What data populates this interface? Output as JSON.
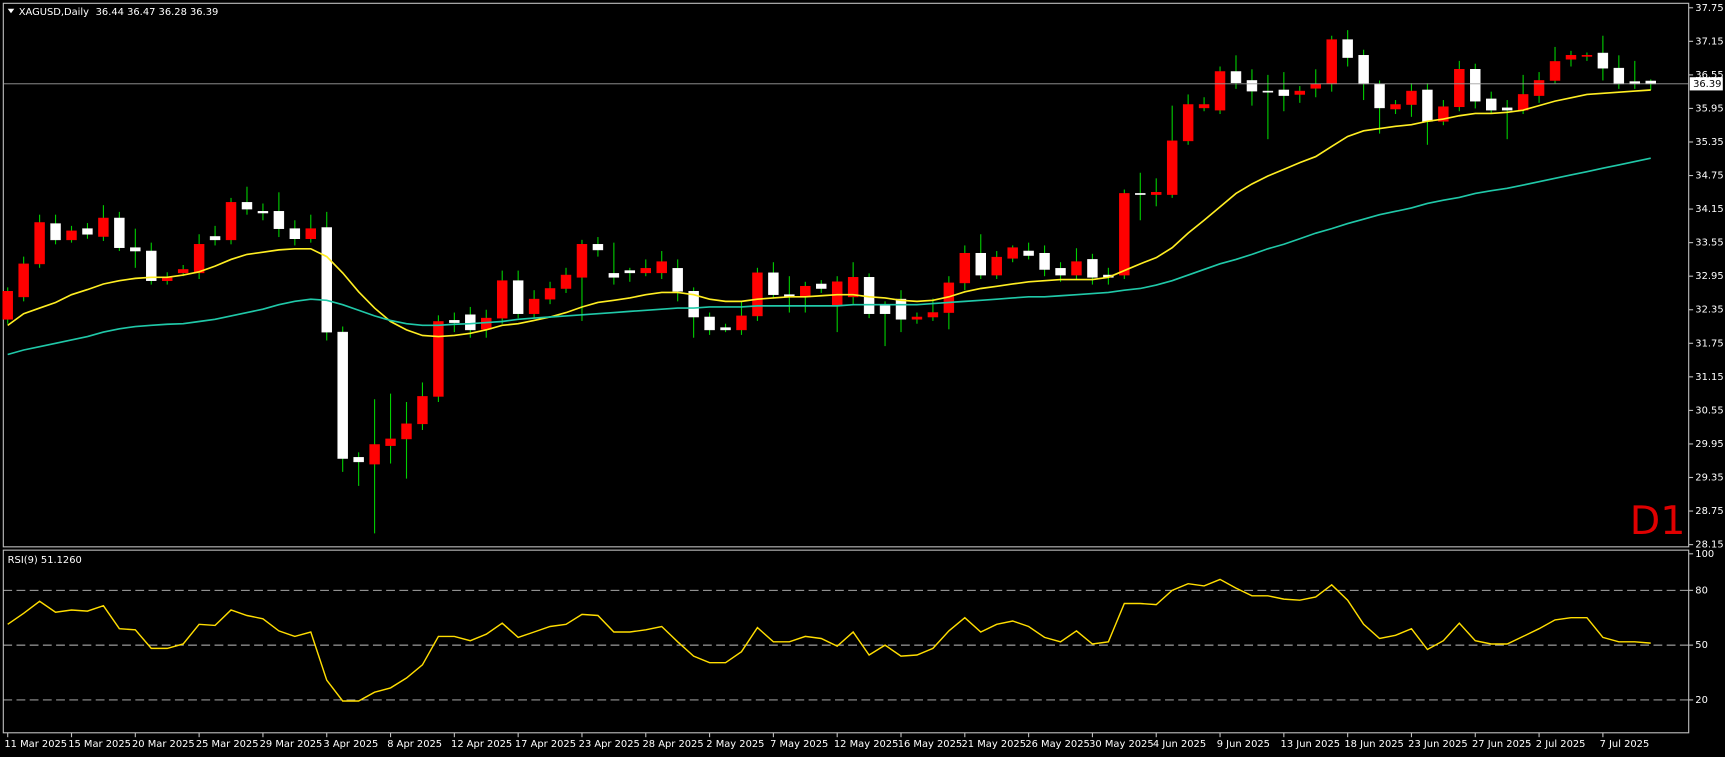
{
  "chart_data": [
    {
      "type": "candlestick",
      "title": "XAGUSD,Daily",
      "ohlc_header": "36.44 36.47 36.28 36.39",
      "timeframe_label": "D1",
      "categories": [
        "11 Mar 2025",
        null,
        null,
        null,
        "15 Mar 2025",
        null,
        null,
        null,
        "20 Mar 2025",
        null,
        null,
        null,
        "25 Mar 2025",
        null,
        null,
        null,
        "29 Mar 2025",
        null,
        null,
        null,
        "3 Apr 2025",
        null,
        null,
        null,
        "8 Apr 2025",
        null,
        null,
        null,
        "12 Apr 2025",
        null,
        null,
        null,
        "17 Apr 2025",
        null,
        null,
        null,
        "23 Apr 2025",
        null,
        null,
        null,
        "28 Apr 2025",
        null,
        null,
        null,
        "2 May 2025",
        null,
        null,
        null,
        "7 May 2025",
        null,
        null,
        null,
        "12 May 2025",
        null,
        null,
        null,
        "16 May 2025",
        null,
        null,
        null,
        "21 May 2025",
        null,
        null,
        null,
        "26 May 2025",
        null,
        null,
        null,
        "30 May 2025",
        null,
        null,
        null,
        "4 Jun 2025",
        null,
        null,
        null,
        "9 Jun 2025",
        null,
        null,
        null,
        "13 Jun 2025",
        null,
        null,
        null,
        "18 Jun 2025",
        null,
        null,
        null,
        "23 Jun 2025",
        null,
        null,
        null,
        "27 Jun 2025",
        null,
        null,
        null,
        "2 Jul 2025",
        null,
        null,
        null,
        "7 Jul 2025",
        null,
        null,
        null
      ],
      "ohlc": [
        [
          32.18,
          32.75,
          32.1,
          32.68
        ],
        [
          32.58,
          33.3,
          32.5,
          33.17
        ],
        [
          33.17,
          34.05,
          33.1,
          33.91
        ],
        [
          33.89,
          34.05,
          33.52,
          33.6
        ],
        [
          33.6,
          33.85,
          33.55,
          33.76
        ],
        [
          33.8,
          33.9,
          33.62,
          33.7
        ],
        [
          33.66,
          34.22,
          33.58,
          33.99
        ],
        [
          33.99,
          34.1,
          33.4,
          33.46
        ],
        [
          33.46,
          33.8,
          33.1,
          33.4
        ],
        [
          33.4,
          33.55,
          32.8,
          32.87
        ],
        [
          32.87,
          33.02,
          32.8,
          32.92
        ],
        [
          33.01,
          33.15,
          32.95,
          33.07
        ],
        [
          33.01,
          33.7,
          32.9,
          33.52
        ],
        [
          33.66,
          33.85,
          33.5,
          33.6
        ],
        [
          33.6,
          34.35,
          33.52,
          34.27
        ],
        [
          34.27,
          34.55,
          34.05,
          34.15
        ],
        [
          34.11,
          34.25,
          33.95,
          34.08
        ],
        [
          34.11,
          34.45,
          33.65,
          33.8
        ],
        [
          33.8,
          33.95,
          33.5,
          33.62
        ],
        [
          33.62,
          34.05,
          33.55,
          33.8
        ],
        [
          33.82,
          34.1,
          31.8,
          31.95
        ],
        [
          31.95,
          32.05,
          29.45,
          29.69
        ],
        [
          29.71,
          29.8,
          29.2,
          29.63
        ],
        [
          29.59,
          30.75,
          28.35,
          29.94
        ],
        [
          29.92,
          30.85,
          29.6,
          30.04
        ],
        [
          30.04,
          30.7,
          29.33,
          30.31
        ],
        [
          30.31,
          31.05,
          30.2,
          30.8
        ],
        [
          30.8,
          32.25,
          30.7,
          32.14
        ],
        [
          32.16,
          32.3,
          31.95,
          32.12
        ],
        [
          32.26,
          32.4,
          31.85,
          31.99
        ],
        [
          32.0,
          32.35,
          31.85,
          32.2
        ],
        [
          32.2,
          33.05,
          32.1,
          32.87
        ],
        [
          32.87,
          33.05,
          32.2,
          32.28
        ],
        [
          32.28,
          32.7,
          32.2,
          32.54
        ],
        [
          32.54,
          32.85,
          32.45,
          32.73
        ],
        [
          32.73,
          33.1,
          32.65,
          32.97
        ],
        [
          32.93,
          33.6,
          32.15,
          33.52
        ],
        [
          33.52,
          33.65,
          33.3,
          33.42
        ],
        [
          33.0,
          33.55,
          32.8,
          32.93
        ],
        [
          33.05,
          33.1,
          32.85,
          33.01
        ],
        [
          33.01,
          33.25,
          32.95,
          33.09
        ],
        [
          33.01,
          33.4,
          32.9,
          33.21
        ],
        [
          33.09,
          33.25,
          32.5,
          32.68
        ],
        [
          32.68,
          32.75,
          31.85,
          32.22
        ],
        [
          32.22,
          32.3,
          31.9,
          31.99
        ],
        [
          32.03,
          32.1,
          31.95,
          31.99
        ],
        [
          31.99,
          32.5,
          31.9,
          32.24
        ],
        [
          32.24,
          33.1,
          32.15,
          33.01
        ],
        [
          33.01,
          33.2,
          32.55,
          32.62
        ],
        [
          32.62,
          32.95,
          32.3,
          32.58
        ],
        [
          32.58,
          32.85,
          32.3,
          32.77
        ],
        [
          32.81,
          32.88,
          32.65,
          32.73
        ],
        [
          32.42,
          32.95,
          31.95,
          32.85
        ],
        [
          32.58,
          33.2,
          32.45,
          32.93
        ],
        [
          32.93,
          33.0,
          32.2,
          32.28
        ],
        [
          32.42,
          32.5,
          31.7,
          32.28
        ],
        [
          32.54,
          32.7,
          31.95,
          32.18
        ],
        [
          32.18,
          32.3,
          32.1,
          32.22
        ],
        [
          32.22,
          32.55,
          32.15,
          32.3
        ],
        [
          32.3,
          32.95,
          32.0,
          32.83
        ],
        [
          32.83,
          33.5,
          32.7,
          33.36
        ],
        [
          33.36,
          33.7,
          32.9,
          32.97
        ],
        [
          32.97,
          33.4,
          32.9,
          33.29
        ],
        [
          33.27,
          33.5,
          33.2,
          33.46
        ],
        [
          33.4,
          33.55,
          33.25,
          33.32
        ],
        [
          33.36,
          33.5,
          32.95,
          33.07
        ],
        [
          33.09,
          33.2,
          32.85,
          32.97
        ],
        [
          32.97,
          33.45,
          32.9,
          33.21
        ],
        [
          33.25,
          33.35,
          32.8,
          32.93
        ],
        [
          32.97,
          33.1,
          32.8,
          32.93
        ],
        [
          32.97,
          34.5,
          32.9,
          34.43
        ],
        [
          34.43,
          34.8,
          33.95,
          34.41
        ],
        [
          34.41,
          34.7,
          34.2,
          34.45
        ],
        [
          34.41,
          36.0,
          34.35,
          35.37
        ],
        [
          35.37,
          36.2,
          35.3,
          36.02
        ],
        [
          35.96,
          36.15,
          35.9,
          36.02
        ],
        [
          35.92,
          36.7,
          35.85,
          36.61
        ],
        [
          36.61,
          36.9,
          36.3,
          36.41
        ],
        [
          36.45,
          36.65,
          36.0,
          36.26
        ],
        [
          36.26,
          36.55,
          35.4,
          36.24
        ],
        [
          36.28,
          36.6,
          35.9,
          36.18
        ],
        [
          36.2,
          36.35,
          36.05,
          36.26
        ],
        [
          36.31,
          36.65,
          36.15,
          36.39
        ],
        [
          36.39,
          37.25,
          36.25,
          37.18
        ],
        [
          37.18,
          37.35,
          36.7,
          36.86
        ],
        [
          36.9,
          37.0,
          36.1,
          36.39
        ],
        [
          36.39,
          36.45,
          35.5,
          35.96
        ],
        [
          35.94,
          36.1,
          35.85,
          36.02
        ],
        [
          36.02,
          36.4,
          35.8,
          36.26
        ],
        [
          36.28,
          36.4,
          35.3,
          35.72
        ],
        [
          35.72,
          36.1,
          35.65,
          35.98
        ],
        [
          35.98,
          36.8,
          35.9,
          36.65
        ],
        [
          36.65,
          36.75,
          35.95,
          36.08
        ],
        [
          36.12,
          36.25,
          35.85,
          35.92
        ],
        [
          35.96,
          36.1,
          35.4,
          35.92
        ],
        [
          35.92,
          36.55,
          35.85,
          36.2
        ],
        [
          36.18,
          36.6,
          36.05,
          36.45
        ],
        [
          36.45,
          37.05,
          36.4,
          36.79
        ],
        [
          36.83,
          36.98,
          36.7,
          36.9
        ],
        [
          36.88,
          36.95,
          36.8,
          36.9
        ],
        [
          36.94,
          37.25,
          36.45,
          36.67
        ],
        [
          36.67,
          36.9,
          36.3,
          36.39
        ],
        [
          36.43,
          36.8,
          36.3,
          36.39
        ],
        [
          36.44,
          36.47,
          36.28,
          36.39
        ]
      ],
      "up_color": "#ff0000",
      "down_color": "#ffffff",
      "wick_color": "#00d000",
      "series": [
        {
          "color": "#ffee22",
          "values": [
            32.07,
            32.28,
            32.38,
            32.48,
            32.62,
            32.71,
            32.81,
            32.87,
            32.91,
            32.93,
            32.93,
            32.97,
            33.03,
            33.13,
            33.25,
            33.34,
            33.38,
            33.42,
            33.44,
            33.44,
            33.3,
            33.01,
            32.67,
            32.38,
            32.14,
            31.99,
            31.89,
            31.87,
            31.89,
            31.93,
            31.99,
            32.07,
            32.1,
            32.16,
            32.22,
            32.3,
            32.4,
            32.48,
            32.52,
            32.56,
            32.62,
            32.66,
            32.66,
            32.62,
            32.54,
            32.5,
            32.5,
            32.54,
            32.56,
            32.58,
            32.58,
            32.6,
            32.62,
            32.62,
            32.58,
            32.56,
            32.52,
            32.5,
            32.52,
            32.58,
            32.67,
            32.73,
            32.77,
            32.81,
            32.85,
            32.87,
            32.89,
            32.89,
            32.89,
            32.93,
            33.05,
            33.17,
            33.28,
            33.46,
            33.72,
            33.95,
            34.19,
            34.43,
            34.6,
            34.74,
            34.86,
            34.98,
            35.09,
            35.27,
            35.45,
            35.55,
            35.59,
            35.63,
            35.66,
            35.72,
            35.76,
            35.82,
            35.86,
            35.86,
            35.88,
            35.92,
            36.0,
            36.08,
            36.14,
            36.2,
            36.22,
            36.24,
            36.26,
            36.28
          ]
        },
        {
          "color": "#20c8a8",
          "values": [
            31.55,
            31.63,
            31.69,
            31.75,
            31.81,
            31.87,
            31.95,
            32.01,
            32.05,
            32.07,
            32.09,
            32.1,
            32.14,
            32.18,
            32.24,
            32.3,
            32.36,
            32.44,
            32.5,
            32.54,
            32.52,
            32.44,
            32.34,
            32.24,
            32.16,
            32.1,
            32.07,
            32.07,
            32.09,
            32.1,
            32.12,
            32.14,
            32.18,
            32.2,
            32.22,
            32.24,
            32.26,
            32.28,
            32.3,
            32.32,
            32.34,
            32.36,
            32.38,
            32.38,
            32.4,
            32.4,
            32.4,
            32.42,
            32.42,
            32.42,
            32.42,
            32.42,
            32.42,
            32.44,
            32.44,
            32.44,
            32.44,
            32.44,
            32.46,
            32.48,
            32.5,
            32.52,
            32.54,
            32.56,
            32.58,
            32.58,
            32.6,
            32.62,
            32.64,
            32.66,
            32.7,
            32.73,
            32.79,
            32.87,
            32.97,
            33.07,
            33.17,
            33.25,
            33.34,
            33.44,
            33.52,
            33.62,
            33.72,
            33.8,
            33.89,
            33.97,
            34.05,
            34.11,
            34.17,
            34.25,
            34.31,
            34.36,
            34.43,
            34.48,
            34.52,
            34.58,
            34.64,
            34.7,
            34.76,
            34.82,
            34.88,
            34.94,
            35.0,
            35.06
          ]
        }
      ],
      "price_line": 36.39,
      "ylim": [
        28.11,
        37.83
      ],
      "yticks": [
        28.15,
        28.75,
        29.35,
        29.95,
        30.55,
        31.15,
        31.75,
        32.35,
        32.95,
        33.55,
        34.15,
        34.75,
        35.35,
        35.95,
        36.55,
        37.15,
        37.75
      ]
    },
    {
      "type": "line",
      "title": "RSI(9) 51.1260",
      "color": "#ffdd00",
      "values": [
        61.4,
        67.4,
        74.0,
        68.0,
        69.2,
        68.6,
        71.6,
        59.0,
        58.4,
        48.2,
        48.2,
        50.6,
        61.4,
        60.8,
        69.2,
        66.2,
        64.4,
        57.8,
        54.8,
        57.2,
        30.8,
        19.4,
        19.4,
        24.2,
        26.6,
        32.0,
        39.2,
        54.8,
        54.8,
        52.4,
        56.0,
        62.0,
        54.2,
        57.2,
        60.2,
        61.4,
        66.8,
        66.2,
        57.2,
        57.2,
        58.4,
        60.2,
        51.8,
        44.0,
        40.4,
        40.4,
        46.4,
        59.6,
        51.8,
        51.8,
        54.8,
        53.6,
        49.4,
        57.2,
        44.6,
        50.0,
        44.0,
        44.6,
        48.2,
        57.8,
        65.0,
        57.2,
        61.4,
        63.2,
        60.2,
        54.2,
        51.8,
        57.8,
        50.6,
        51.8,
        72.8,
        72.8,
        72.2,
        80.0,
        83.6,
        82.4,
        86.0,
        81.2,
        77.0,
        77.0,
        75.2,
        74.6,
        76.4,
        83.0,
        74.6,
        61.4,
        53.6,
        55.4,
        59.0,
        47.6,
        52.4,
        62.0,
        52.4,
        50.6,
        50.6,
        54.8,
        59.0,
        63.8,
        65.0,
        65.0,
        54.2,
        51.8,
        51.8,
        51.126
      ],
      "levels": [
        20,
        50,
        80
      ],
      "ylim": [
        2,
        102
      ],
      "yticks": [
        20,
        50,
        80,
        100
      ]
    }
  ]
}
